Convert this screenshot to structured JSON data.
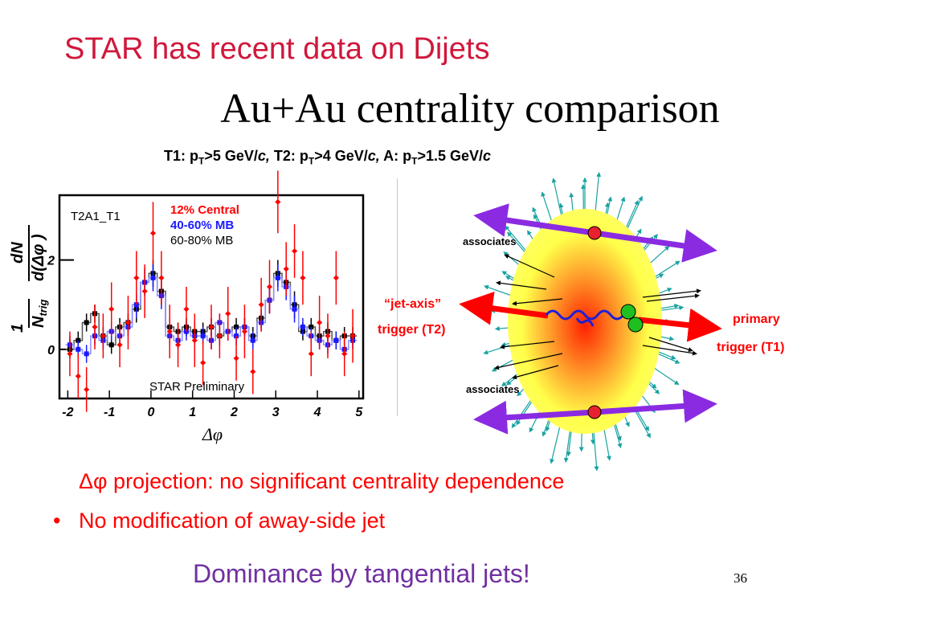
{
  "title": "STAR has recent data on Dijets",
  "subtitle": "Au+Au centrality comparison",
  "cuts": [
    {
      "pre": "T1: p",
      "sub": "T",
      "post": ">5 GeV/",
      "unit": "c,"
    },
    {
      "pre": " T2: p",
      "sub": "T",
      "post": ">4 GeV/",
      "unit": "c,"
    },
    {
      "pre": " A: p",
      "sub": "T",
      "post": ">1.5 GeV/",
      "unit": "c"
    }
  ],
  "chart_data": {
    "type": "scatter",
    "panel_label": "T2A1_T1",
    "watermark": "STAR Preliminary",
    "xlabel": "Δφ",
    "ylabel_main": "dN",
    "ylabel_den": "d(Δφ )",
    "ylabel_prefix_num": "1",
    "ylabel_prefix_den": "N",
    "ylabel_prefix_sub": "trig",
    "xlim": [
      -2.2,
      5.1
    ],
    "ylim": [
      -1.1,
      3.45
    ],
    "x_ticks": [
      "-2",
      "-1",
      "0",
      "1",
      "2",
      "3",
      "4",
      "5"
    ],
    "x_tick_values": [
      -2,
      -1,
      0,
      1,
      2,
      3,
      4,
      5
    ],
    "y_ticks": [
      "0",
      "2"
    ],
    "y_tick_values": [
      0,
      2
    ],
    "series": [
      {
        "name": "12% Central",
        "color": "#ff0000",
        "x": [
          -1.95,
          -1.75,
          -1.55,
          -1.35,
          -1.15,
          -0.95,
          -0.75,
          -0.55,
          -0.35,
          -0.15,
          0.05,
          0.25,
          0.45,
          0.65,
          0.85,
          1.05,
          1.25,
          1.45,
          1.65,
          1.85,
          2.05,
          2.25,
          2.45,
          2.65,
          2.85,
          3.05,
          3.25,
          3.45,
          3.65,
          3.85,
          4.05,
          4.25,
          4.45,
          4.65,
          4.85
        ],
        "y": [
          -0.1,
          -0.6,
          -0.9,
          0.5,
          0.3,
          0.9,
          0.1,
          0.6,
          1.6,
          1.3,
          2.6,
          1.6,
          0.4,
          0.1,
          0.9,
          0.2,
          -0.3,
          0.5,
          0.3,
          0.8,
          -0.2,
          0.4,
          -0.5,
          1.0,
          1.4,
          3.3,
          1.8,
          2.2,
          1.6,
          -0.1,
          0.6,
          0.3,
          1.6,
          -0.1,
          0.3
        ],
        "err": [
          0.5,
          0.5,
          0.5,
          0.5,
          0.5,
          0.6,
          0.5,
          0.6,
          0.6,
          0.6,
          0.7,
          0.6,
          0.6,
          0.5,
          0.5,
          0.6,
          0.5,
          0.5,
          0.5,
          0.6,
          0.5,
          0.6,
          0.5,
          0.6,
          0.6,
          0.7,
          0.6,
          0.6,
          0.6,
          0.5,
          0.6,
          0.5,
          0.6,
          0.5,
          0.6
        ]
      },
      {
        "name": "40-60% MB",
        "color": "#1a1aff",
        "x": [
          -1.95,
          -1.75,
          -1.55,
          -1.35,
          -1.15,
          -0.95,
          -0.75,
          -0.55,
          -0.35,
          -0.15,
          0.05,
          0.25,
          0.45,
          0.65,
          0.85,
          1.05,
          1.25,
          1.45,
          1.65,
          1.85,
          2.05,
          2.25,
          2.45,
          2.65,
          2.85,
          3.05,
          3.25,
          3.45,
          3.65,
          3.85,
          4.05,
          4.25,
          4.45,
          4.65,
          4.85
        ],
        "y": [
          0.1,
          0.0,
          -0.1,
          0.3,
          0.2,
          0.4,
          0.3,
          0.5,
          1.0,
          1.5,
          1.6,
          1.2,
          0.3,
          0.2,
          0.4,
          0.3,
          0.3,
          0.2,
          0.6,
          0.4,
          0.3,
          0.5,
          0.2,
          0.6,
          1.1,
          1.6,
          1.4,
          0.9,
          0.5,
          0.3,
          0.2,
          0.1,
          0.2,
          0.0,
          0.2
        ],
        "err": [
          0.2,
          0.2,
          0.2,
          0.2,
          0.2,
          0.2,
          0.2,
          0.2,
          0.3,
          0.3,
          0.3,
          0.3,
          0.2,
          0.2,
          0.2,
          0.2,
          0.2,
          0.2,
          0.2,
          0.2,
          0.2,
          0.2,
          0.2,
          0.2,
          0.3,
          0.3,
          0.3,
          0.3,
          0.2,
          0.2,
          0.2,
          0.2,
          0.2,
          0.2,
          0.2
        ]
      },
      {
        "name": "60-80% MB",
        "color": "#000000",
        "x": [
          -1.95,
          -1.75,
          -1.55,
          -1.35,
          -1.15,
          -0.95,
          -0.75,
          -0.55,
          -0.35,
          -0.15,
          0.05,
          0.25,
          0.45,
          0.65,
          0.85,
          1.05,
          1.25,
          1.45,
          1.65,
          1.85,
          2.05,
          2.25,
          2.45,
          2.65,
          2.85,
          3.05,
          3.25,
          3.45,
          3.65,
          3.85,
          4.05,
          4.25,
          4.45,
          4.65,
          4.85
        ],
        "y": [
          0.0,
          0.2,
          0.6,
          0.8,
          0.3,
          0.1,
          0.5,
          0.6,
          0.9,
          1.5,
          1.7,
          1.3,
          0.5,
          0.4,
          0.5,
          0.4,
          0.4,
          0.5,
          0.3,
          0.4,
          0.5,
          0.5,
          0.3,
          0.7,
          1.1,
          1.7,
          1.5,
          1.0,
          0.4,
          0.5,
          0.3,
          0.4,
          0.2,
          0.3,
          0.3
        ],
        "err": [
          0.2,
          0.2,
          0.2,
          0.2,
          0.2,
          0.2,
          0.2,
          0.2,
          0.3,
          0.3,
          0.3,
          0.3,
          0.2,
          0.2,
          0.2,
          0.2,
          0.2,
          0.2,
          0.2,
          0.2,
          0.2,
          0.2,
          0.2,
          0.2,
          0.3,
          0.3,
          0.3,
          0.3,
          0.2,
          0.2,
          0.2,
          0.2,
          0.2,
          0.2,
          0.2
        ]
      }
    ],
    "legend_placement": "top-center",
    "grid": false
  },
  "diagram": {
    "label_associates_top": "associates",
    "label_associates_bottom": "associates",
    "label_jet_axis_1": "“jet-axis”",
    "label_jet_axis_2": "trigger (T2)",
    "label_primary_1": "primary",
    "label_primary_2": "trigger (T1)",
    "colors": {
      "red_labels": "#ff0000",
      "purple_arrow": "#8a2be2",
      "teal_tracks": "#19a2a2",
      "gluon": "#1f1fd6"
    }
  },
  "bullets": [
    {
      "marker": "",
      "symbol": "Δφ",
      "text": " projection: no significant centrality dependence"
    },
    {
      "marker": "•",
      "symbol": "",
      "text": "No modification of away-side jet"
    }
  ],
  "conclusion": "Dominance by tangential jets!",
  "page_number": "36"
}
